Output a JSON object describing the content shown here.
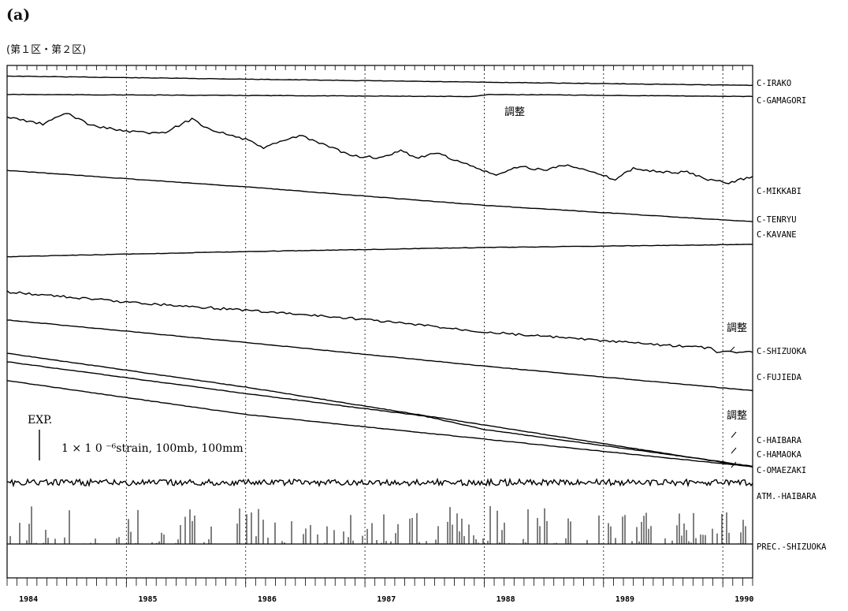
{
  "panel_label": "(a)",
  "region_label": "(第１区・第２区)",
  "chart_data": {
    "type": "line",
    "x_range": [
      1984,
      1990.25
    ],
    "x_tick_labels": [
      "1984",
      "1985",
      "1986",
      "1987",
      "1988",
      "1989",
      "1990"
    ],
    "x_ticks": [
      1984,
      1985,
      1986,
      1987,
      1988,
      1989,
      1990
    ],
    "grid": "vertical dotted lines at year boundaries",
    "scale_label": "EXP.",
    "scale_text": "1 × 1 0 ⁻⁶strain, 100mb, 100mm",
    "annotations": [
      {
        "text": "調整",
        "near": "C-GAMAGORI",
        "x": 1988.1
      },
      {
        "text": "調整",
        "near": "C-SHIZUOKA",
        "x": 1989.9
      },
      {
        "text": "調整",
        "near": "C-HAIBARA",
        "x": 1989.9
      }
    ],
    "series": [
      {
        "name": "C-IRAKO",
        "x": [
          1984,
          1986,
          1988,
          1990.25
        ],
        "y": [
          0.5,
          0.2,
          -0.1,
          -0.4
        ]
      },
      {
        "name": "C-GAMAGORI",
        "x": [
          1984,
          1986,
          1987.9,
          1988.05,
          1990.25
        ],
        "y": [
          0.4,
          0.3,
          0.2,
          0.4,
          0.2
        ]
      },
      {
        "name": "C-MIKKABI",
        "x": [
          1984,
          1984.3,
          1984.5,
          1984.7,
          1985,
          1985.3,
          1985.55,
          1985.7,
          1986,
          1986.15,
          1986.45,
          1986.7,
          1986.9,
          1987.15,
          1987.3,
          1987.45,
          1987.6,
          1987.8,
          1988.1,
          1988.3,
          1988.5,
          1988.7,
          1988.9,
          1989.1,
          1989.25,
          1989.5,
          1989.7,
          1989.9,
          1990.05,
          1990.25
        ],
        "y": [
          3.2,
          2.5,
          3.6,
          2.4,
          1.8,
          1.6,
          3.0,
          2.0,
          1.0,
          0.2,
          1.4,
          0.3,
          -0.6,
          -0.8,
          -0.1,
          -0.8,
          -0.3,
          -1.2,
          -2.5,
          -1.6,
          -2.0,
          -1.4,
          -2.2,
          -2.9,
          -1.8,
          -2.2,
          -2.2,
          -3.0,
          -3.2,
          -2.6
        ]
      },
      {
        "name": "C-TENRYU",
        "x": [
          1984,
          1986,
          1988,
          1990.25
        ],
        "y": [
          2.6,
          1.0,
          -0.8,
          -2.4
        ]
      },
      {
        "name": "C-KAVANE",
        "x": [
          1984,
          1986,
          1988,
          1990.25
        ],
        "y": [
          -1.2,
          -0.7,
          -0.3,
          0.0
        ]
      },
      {
        "name": "C-SHIZUOKA",
        "x": [
          1984,
          1985,
          1986,
          1987,
          1988,
          1989,
          1989.9,
          1989.95,
          1990.25
        ],
        "y": [
          2.3,
          1.3,
          0.5,
          -0.4,
          -1.6,
          -2.5,
          -3.2,
          -3.6,
          -3.6
        ]
      },
      {
        "name": "C-FUJIEDA",
        "x": [
          1984,
          1986,
          1988,
          1990.25
        ],
        "y": [
          3.4,
          1.2,
          -1.1,
          -3.5
        ]
      },
      {
        "name": "C-HAIBARA",
        "x": [
          1984,
          1986,
          1987.5,
          1988,
          1989.9,
          1990.25
        ],
        "y": [
          4.7,
          1.6,
          -0.6,
          -1.9,
          -4.9,
          -5.5
        ]
      },
      {
        "name": "C-HAMAOKA",
        "x": [
          1984,
          1986,
          1988,
          1990.25
        ],
        "y": [
          6.3,
          3.0,
          -0.7,
          -4.8
        ]
      },
      {
        "name": "C-OMAEZAKI",
        "x": [
          1984,
          1986,
          1988,
          1990.25
        ],
        "y": [
          4.4,
          1.1,
          -1.3,
          -4.0
        ]
      },
      {
        "name": "ATM.-HAIBARA",
        "x": [
          1984,
          1990.25
        ],
        "y": [
          0,
          0
        ]
      },
      {
        "name": "PREC.-SHIZUOKA",
        "x": [
          1984,
          1990.25
        ],
        "y": [
          0,
          0
        ]
      }
    ]
  }
}
